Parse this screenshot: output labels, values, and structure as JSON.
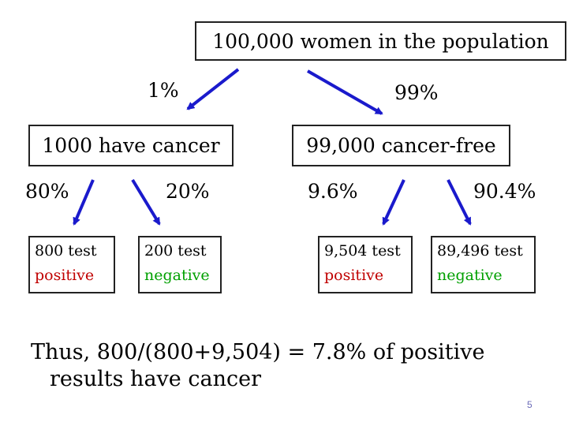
{
  "population": {
    "label": "100,000 women in the population"
  },
  "branches": {
    "cancer": {
      "percent": "1%",
      "label": "1000 have cancer",
      "positive": {
        "percent": "80%",
        "count": "800 test",
        "result": "positive"
      },
      "negative": {
        "percent": "20%",
        "count": "200 test",
        "result": "negative"
      }
    },
    "cancer_free": {
      "percent": "99%",
      "label": "99,000 cancer-free",
      "positive": {
        "percent": "9.6%",
        "count": "9,504 test",
        "result": "positive"
      },
      "negative": {
        "percent": "90.4%",
        "count": "89,496 test",
        "result": "negative"
      }
    }
  },
  "conclusion": {
    "line1": "Thus, 800/(800+9,504) = 7.8%  of positive",
    "line2": "results have cancer"
  },
  "slide_number": "5",
  "colors": {
    "arrow": "#1a1acc",
    "positive": "#c00000",
    "negative": "#00a000",
    "slide_number": "#6b6bb8"
  },
  "arrows": [
    {
      "from": "population",
      "to": "cancer"
    },
    {
      "from": "population",
      "to": "cancer_free"
    },
    {
      "from": "cancer",
      "to": "cancer-positive"
    },
    {
      "from": "cancer",
      "to": "cancer-negative"
    },
    {
      "from": "cancer_free",
      "to": "cancer_free-positive"
    },
    {
      "from": "cancer_free",
      "to": "cancer_free-negative"
    }
  ]
}
